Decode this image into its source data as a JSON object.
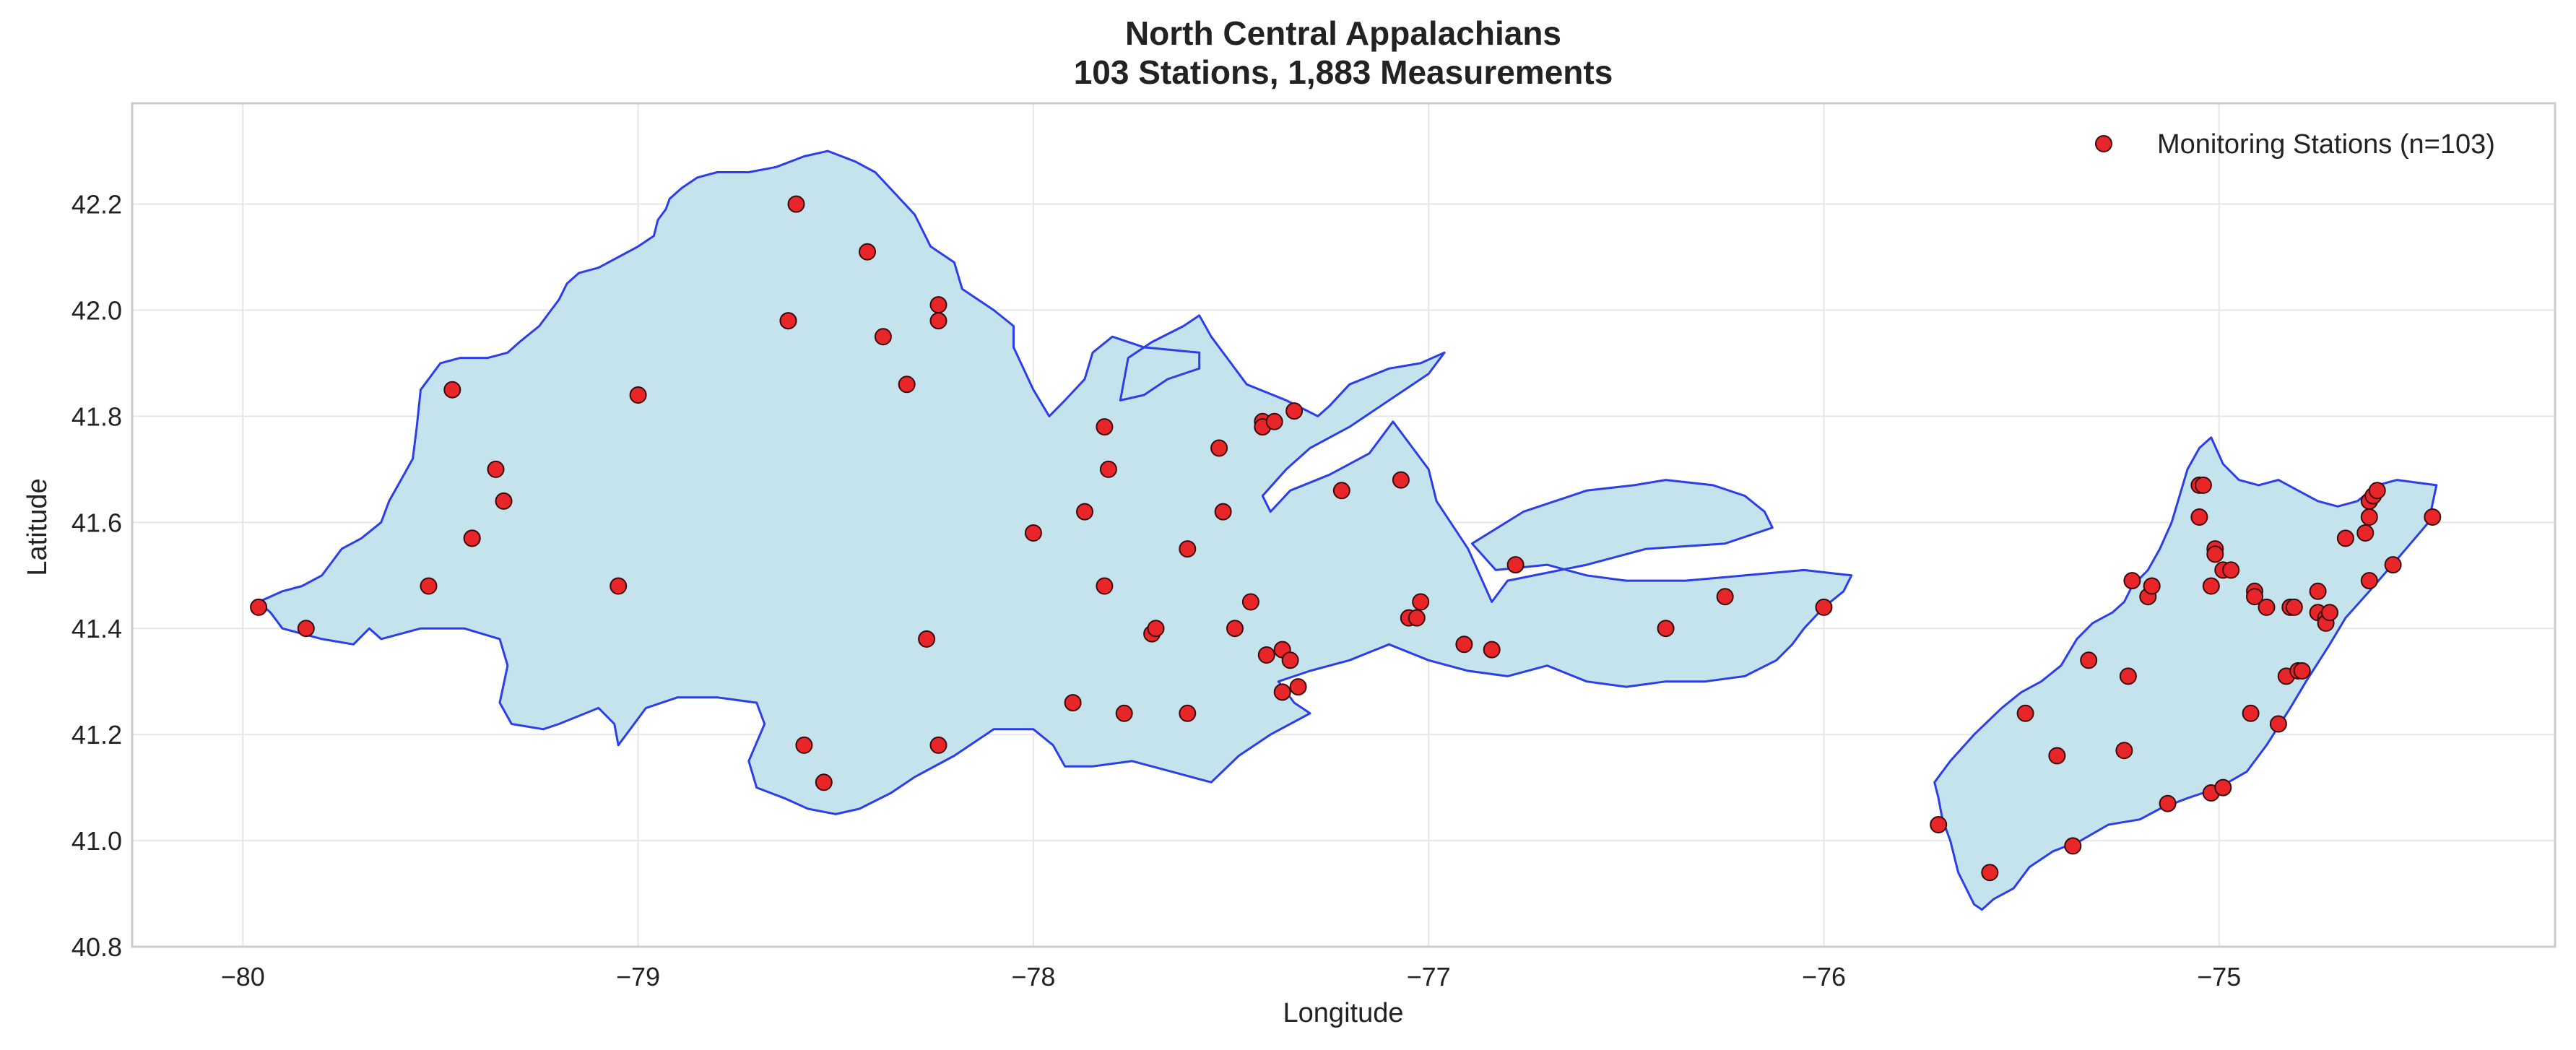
{
  "chart_data": {
    "type": "scatter",
    "title": "North Central Appalachians",
    "subtitle": "103 Stations, 1,883 Measurements",
    "xlabel": "Longitude",
    "ylabel": "Latitude",
    "xlim": [
      -80.28,
      -74.15
    ],
    "ylim": [
      40.8,
      42.39
    ],
    "xticks": [
      -80,
      -79,
      -78,
      -77,
      -76,
      -75
    ],
    "xtick_labels": [
      "−80",
      "−79",
      "−78",
      "−77",
      "−76",
      "−75"
    ],
    "yticks": [
      40.8,
      41.0,
      41.2,
      41.4,
      41.6,
      41.8,
      42.0,
      42.2
    ],
    "ytick_labels": [
      "40.8",
      "41.0",
      "41.2",
      "41.4",
      "41.6",
      "41.8",
      "42.0",
      "42.2"
    ],
    "grid": true,
    "legend": {
      "position": "top-right",
      "label": "Monitoring Stations (n=103)"
    },
    "colors": {
      "region_fill": "#c5e3ec",
      "region_edge": "#2b3ee8",
      "marker_fill": "#e8262a",
      "marker_edge": "#3a0a0a",
      "grid": "#e6e6e6",
      "axes_frame": "#cccccc"
    },
    "region_outlines": [
      [
        [
          -79.96,
          41.45
        ],
        [
          -79.93,
          41.43
        ],
        [
          -79.9,
          41.4
        ],
        [
          -79.8,
          41.38
        ],
        [
          -79.72,
          41.37
        ],
        [
          -79.68,
          41.4
        ],
        [
          -79.65,
          41.38
        ],
        [
          -79.55,
          41.4
        ],
        [
          -79.44,
          41.4
        ],
        [
          -79.35,
          41.38
        ],
        [
          -79.33,
          41.33
        ],
        [
          -79.35,
          41.26
        ],
        [
          -79.32,
          41.22
        ],
        [
          -79.24,
          41.21
        ],
        [
          -79.2,
          41.22
        ],
        [
          -79.1,
          41.25
        ],
        [
          -79.06,
          41.22
        ],
        [
          -79.05,
          41.18
        ],
        [
          -78.98,
          41.25
        ],
        [
          -78.9,
          41.27
        ],
        [
          -78.8,
          41.27
        ],
        [
          -78.7,
          41.26
        ],
        [
          -78.68,
          41.22
        ],
        [
          -78.72,
          41.15
        ],
        [
          -78.7,
          41.1
        ],
        [
          -78.63,
          41.08
        ],
        [
          -78.57,
          41.06
        ],
        [
          -78.5,
          41.05
        ],
        [
          -78.44,
          41.06
        ],
        [
          -78.36,
          41.09
        ],
        [
          -78.3,
          41.12
        ],
        [
          -78.2,
          41.16
        ],
        [
          -78.1,
          41.21
        ],
        [
          -78.0,
          41.21
        ],
        [
          -77.95,
          41.18
        ],
        [
          -77.92,
          41.14
        ],
        [
          -77.85,
          41.14
        ],
        [
          -77.75,
          41.15
        ],
        [
          -77.65,
          41.13
        ],
        [
          -77.55,
          41.11
        ],
        [
          -77.48,
          41.16
        ],
        [
          -77.4,
          41.2
        ],
        [
          -77.3,
          41.24
        ],
        [
          -77.34,
          41.26
        ],
        [
          -77.38,
          41.3
        ],
        [
          -77.3,
          41.32
        ],
        [
          -77.2,
          41.34
        ],
        [
          -77.1,
          41.37
        ],
        [
          -77.0,
          41.34
        ],
        [
          -76.9,
          41.32
        ],
        [
          -76.8,
          41.31
        ],
        [
          -76.7,
          41.33
        ],
        [
          -76.6,
          41.3
        ],
        [
          -76.5,
          41.29
        ],
        [
          -76.4,
          41.3
        ],
        [
          -76.3,
          41.3
        ],
        [
          -76.2,
          41.31
        ],
        [
          -76.12,
          41.34
        ],
        [
          -76.08,
          41.37
        ],
        [
          -76.05,
          41.4
        ],
        [
          -76.0,
          41.44
        ],
        [
          -75.95,
          41.47
        ],
        [
          -75.93,
          41.5
        ],
        [
          -76.05,
          41.51
        ],
        [
          -76.2,
          41.5
        ],
        [
          -76.35,
          41.49
        ],
        [
          -76.5,
          41.49
        ],
        [
          -76.6,
          41.5
        ],
        [
          -76.7,
          41.52
        ],
        [
          -76.83,
          41.51
        ],
        [
          -76.89,
          41.56
        ],
        [
          -76.76,
          41.62
        ],
        [
          -76.6,
          41.66
        ],
        [
          -76.48,
          41.67
        ],
        [
          -76.4,
          41.68
        ],
        [
          -76.28,
          41.67
        ],
        [
          -76.2,
          41.65
        ],
        [
          -76.15,
          41.62
        ],
        [
          -76.13,
          41.59
        ],
        [
          -76.25,
          41.56
        ],
        [
          -76.45,
          41.55
        ],
        [
          -76.6,
          41.52
        ],
        [
          -76.8,
          41.49
        ],
        [
          -76.84,
          41.45
        ],
        [
          -76.9,
          41.55
        ],
        [
          -76.98,
          41.64
        ],
        [
          -77.0,
          41.7
        ],
        [
          -77.05,
          41.75
        ],
        [
          -77.09,
          41.79
        ],
        [
          -77.15,
          41.73
        ],
        [
          -77.25,
          41.69
        ],
        [
          -77.35,
          41.66
        ],
        [
          -77.4,
          41.62
        ],
        [
          -77.42,
          41.65
        ],
        [
          -77.36,
          41.7
        ],
        [
          -77.3,
          41.74
        ],
        [
          -77.2,
          41.78
        ],
        [
          -77.1,
          41.83
        ],
        [
          -77.0,
          41.88
        ],
        [
          -76.96,
          41.92
        ],
        [
          -77.02,
          41.9
        ],
        [
          -77.1,
          41.89
        ],
        [
          -77.2,
          41.86
        ],
        [
          -77.25,
          41.82
        ],
        [
          -77.28,
          41.8
        ],
        [
          -77.36,
          41.83
        ],
        [
          -77.46,
          41.86
        ],
        [
          -77.5,
          41.9
        ],
        [
          -77.55,
          41.95
        ],
        [
          -77.58,
          41.99
        ],
        [
          -77.62,
          41.97
        ],
        [
          -77.7,
          41.94
        ],
        [
          -77.76,
          41.91
        ],
        [
          -77.78,
          41.83
        ],
        [
          -77.72,
          41.84
        ],
        [
          -77.66,
          41.87
        ],
        [
          -77.58,
          41.89
        ],
        [
          -77.58,
          41.92
        ],
        [
          -77.72,
          41.93
        ],
        [
          -77.8,
          41.95
        ],
        [
          -77.85,
          41.92
        ],
        [
          -77.87,
          41.87
        ],
        [
          -77.92,
          41.83
        ],
        [
          -77.96,
          41.8
        ],
        [
          -78.0,
          41.85
        ],
        [
          -78.05,
          41.93
        ],
        [
          -78.05,
          41.97
        ],
        [
          -78.1,
          42.0
        ],
        [
          -78.18,
          42.04
        ],
        [
          -78.2,
          42.09
        ],
        [
          -78.26,
          42.12
        ],
        [
          -78.3,
          42.18
        ],
        [
          -78.35,
          42.22
        ],
        [
          -78.4,
          42.26
        ],
        [
          -78.45,
          42.28
        ],
        [
          -78.52,
          42.3
        ],
        [
          -78.58,
          42.29
        ],
        [
          -78.65,
          42.27
        ],
        [
          -78.72,
          42.26
        ],
        [
          -78.8,
          42.26
        ],
        [
          -78.85,
          42.25
        ],
        [
          -78.89,
          42.23
        ],
        [
          -78.92,
          42.21
        ],
        [
          -78.93,
          42.19
        ],
        [
          -78.95,
          42.17
        ],
        [
          -78.96,
          42.14
        ],
        [
          -79.0,
          42.12
        ],
        [
          -79.05,
          42.1
        ],
        [
          -79.1,
          42.08
        ],
        [
          -79.15,
          42.07
        ],
        [
          -79.18,
          42.05
        ],
        [
          -79.2,
          42.02
        ],
        [
          -79.22,
          42.0
        ],
        [
          -79.25,
          41.97
        ],
        [
          -79.3,
          41.94
        ],
        [
          -79.33,
          41.92
        ],
        [
          -79.38,
          41.91
        ],
        [
          -79.45,
          41.91
        ],
        [
          -79.5,
          41.9
        ],
        [
          -79.55,
          41.85
        ],
        [
          -79.56,
          41.78
        ],
        [
          -79.57,
          41.72
        ],
        [
          -79.6,
          41.68
        ],
        [
          -79.63,
          41.64
        ],
        [
          -79.65,
          41.6
        ],
        [
          -79.7,
          41.57
        ],
        [
          -79.75,
          41.55
        ],
        [
          -79.78,
          41.52
        ],
        [
          -79.8,
          41.5
        ],
        [
          -79.85,
          41.48
        ],
        [
          -79.9,
          41.47
        ],
        [
          -79.96,
          41.45
        ]
      ],
      [
        [
          -75.71,
          41.08
        ],
        [
          -75.72,
          41.11
        ],
        [
          -75.68,
          41.15
        ],
        [
          -75.62,
          41.2
        ],
        [
          -75.55,
          41.25
        ],
        [
          -75.5,
          41.28
        ],
        [
          -75.45,
          41.3
        ],
        [
          -75.4,
          41.33
        ],
        [
          -75.36,
          41.38
        ],
        [
          -75.32,
          41.41
        ],
        [
          -75.27,
          41.43
        ],
        [
          -75.24,
          41.45
        ],
        [
          -75.22,
          41.48
        ],
        [
          -75.18,
          41.51
        ],
        [
          -75.15,
          41.55
        ],
        [
          -75.12,
          41.6
        ],
        [
          -75.1,
          41.65
        ],
        [
          -75.08,
          41.7
        ],
        [
          -75.05,
          41.74
        ],
        [
          -75.02,
          41.76
        ],
        [
          -74.99,
          41.71
        ],
        [
          -74.95,
          41.68
        ],
        [
          -74.9,
          41.67
        ],
        [
          -74.85,
          41.68
        ],
        [
          -74.8,
          41.66
        ],
        [
          -74.75,
          41.64
        ],
        [
          -74.7,
          41.63
        ],
        [
          -74.65,
          41.64
        ],
        [
          -74.6,
          41.67
        ],
        [
          -74.55,
          41.68
        ],
        [
          -74.45,
          41.67
        ],
        [
          -74.47,
          41.6
        ],
        [
          -74.55,
          41.53
        ],
        [
          -74.62,
          41.47
        ],
        [
          -74.68,
          41.42
        ],
        [
          -74.72,
          41.37
        ],
        [
          -74.78,
          41.3
        ],
        [
          -74.82,
          41.25
        ],
        [
          -74.88,
          41.18
        ],
        [
          -74.93,
          41.13
        ],
        [
          -75.0,
          41.1
        ],
        [
          -75.08,
          41.08
        ],
        [
          -75.15,
          41.06
        ],
        [
          -75.2,
          41.04
        ],
        [
          -75.28,
          41.03
        ],
        [
          -75.35,
          41.0
        ],
        [
          -75.42,
          40.98
        ],
        [
          -75.48,
          40.95
        ],
        [
          -75.52,
          40.91
        ],
        [
          -75.57,
          40.89
        ],
        [
          -75.6,
          40.87
        ],
        [
          -75.62,
          40.88
        ],
        [
          -75.66,
          40.94
        ],
        [
          -75.68,
          41.0
        ],
        [
          -75.7,
          41.04
        ],
        [
          -75.71,
          41.08
        ]
      ]
    ],
    "points": [
      [
        -79.96,
        41.44
      ],
      [
        -79.84,
        41.4
      ],
      [
        -79.53,
        41.48
      ],
      [
        -79.47,
        41.85
      ],
      [
        -79.42,
        41.57
      ],
      [
        -79.42,
        41.57
      ],
      [
        -79.36,
        41.7
      ],
      [
        -79.34,
        41.64
      ],
      [
        -79.05,
        41.48
      ],
      [
        -79.0,
        41.84
      ],
      [
        -78.6,
        42.2
      ],
      [
        -78.42,
        42.11
      ],
      [
        -78.62,
        41.98
      ],
      [
        -78.62,
        41.98
      ],
      [
        -78.38,
        41.95
      ],
      [
        -78.32,
        41.86
      ],
      [
        -78.24,
        42.01
      ],
      [
        -78.24,
        41.98
      ],
      [
        -78.27,
        41.38
      ],
      [
        -78.58,
        41.18
      ],
      [
        -78.53,
        41.11
      ],
      [
        -78.24,
        41.18
      ],
      [
        -78.0,
        41.58
      ],
      [
        -77.82,
        41.78
      ],
      [
        -77.81,
        41.7
      ],
      [
        -77.87,
        41.62
      ],
      [
        -77.82,
        41.48
      ],
      [
        -77.9,
        41.26
      ],
      [
        -77.77,
        41.24
      ],
      [
        -77.7,
        41.39
      ],
      [
        -77.69,
        41.4
      ],
      [
        -77.61,
        41.55
      ],
      [
        -77.61,
        41.24
      ],
      [
        -77.53,
        41.74
      ],
      [
        -77.52,
        41.62
      ],
      [
        -77.49,
        41.4
      ],
      [
        -77.45,
        41.45
      ],
      [
        -77.42,
        41.79
      ],
      [
        -77.42,
        41.78
      ],
      [
        -77.39,
        41.79
      ],
      [
        -77.34,
        41.81
      ],
      [
        -77.41,
        41.35
      ],
      [
        -77.37,
        41.36
      ],
      [
        -77.35,
        41.34
      ],
      [
        -77.37,
        41.28
      ],
      [
        -77.33,
        41.29
      ],
      [
        -77.22,
        41.66
      ],
      [
        -77.07,
        41.68
      ],
      [
        -77.05,
        41.42
      ],
      [
        -77.02,
        41.45
      ],
      [
        -77.03,
        41.42
      ],
      [
        -76.91,
        41.37
      ],
      [
        -76.84,
        41.36
      ],
      [
        -76.78,
        41.52
      ],
      [
        -76.4,
        41.4
      ],
      [
        -76.25,
        41.46
      ],
      [
        -76.0,
        41.44
      ],
      [
        -75.71,
        41.03
      ],
      [
        -75.58,
        40.94
      ],
      [
        -75.49,
        41.24
      ],
      [
        -75.41,
        41.16
      ],
      [
        -75.37,
        40.99
      ],
      [
        -75.33,
        41.34
      ],
      [
        -75.23,
        41.31
      ],
      [
        -75.24,
        41.17
      ],
      [
        -75.22,
        41.49
      ],
      [
        -75.18,
        41.46
      ],
      [
        -75.17,
        41.48
      ],
      [
        -75.13,
        41.07
      ],
      [
        -75.05,
        41.67
      ],
      [
        -75.04,
        41.67
      ],
      [
        -75.05,
        41.61
      ],
      [
        -75.02,
        41.48
      ],
      [
        -75.01,
        41.55
      ],
      [
        -75.01,
        41.54
      ],
      [
        -74.99,
        41.51
      ],
      [
        -74.97,
        41.51
      ],
      [
        -75.02,
        41.09
      ],
      [
        -74.99,
        41.1
      ],
      [
        -74.91,
        41.47
      ],
      [
        -74.91,
        41.46
      ],
      [
        -74.92,
        41.24
      ],
      [
        -74.88,
        41.44
      ],
      [
        -74.85,
        41.22
      ],
      [
        -74.83,
        41.31
      ],
      [
        -74.82,
        41.44
      ],
      [
        -74.81,
        41.44
      ],
      [
        -74.8,
        41.32
      ],
      [
        -74.79,
        41.32
      ],
      [
        -74.75,
        41.47
      ],
      [
        -74.75,
        41.43
      ],
      [
        -74.73,
        41.42
      ],
      [
        -74.73,
        41.41
      ],
      [
        -74.72,
        41.43
      ],
      [
        -74.68,
        41.57
      ],
      [
        -74.63,
        41.58
      ],
      [
        -74.62,
        41.61
      ],
      [
        -74.62,
        41.64
      ],
      [
        -74.61,
        41.65
      ],
      [
        -74.62,
        41.49
      ],
      [
        -74.56,
        41.52
      ],
      [
        -74.46,
        41.61
      ],
      [
        -74.6,
        41.66
      ]
    ]
  }
}
